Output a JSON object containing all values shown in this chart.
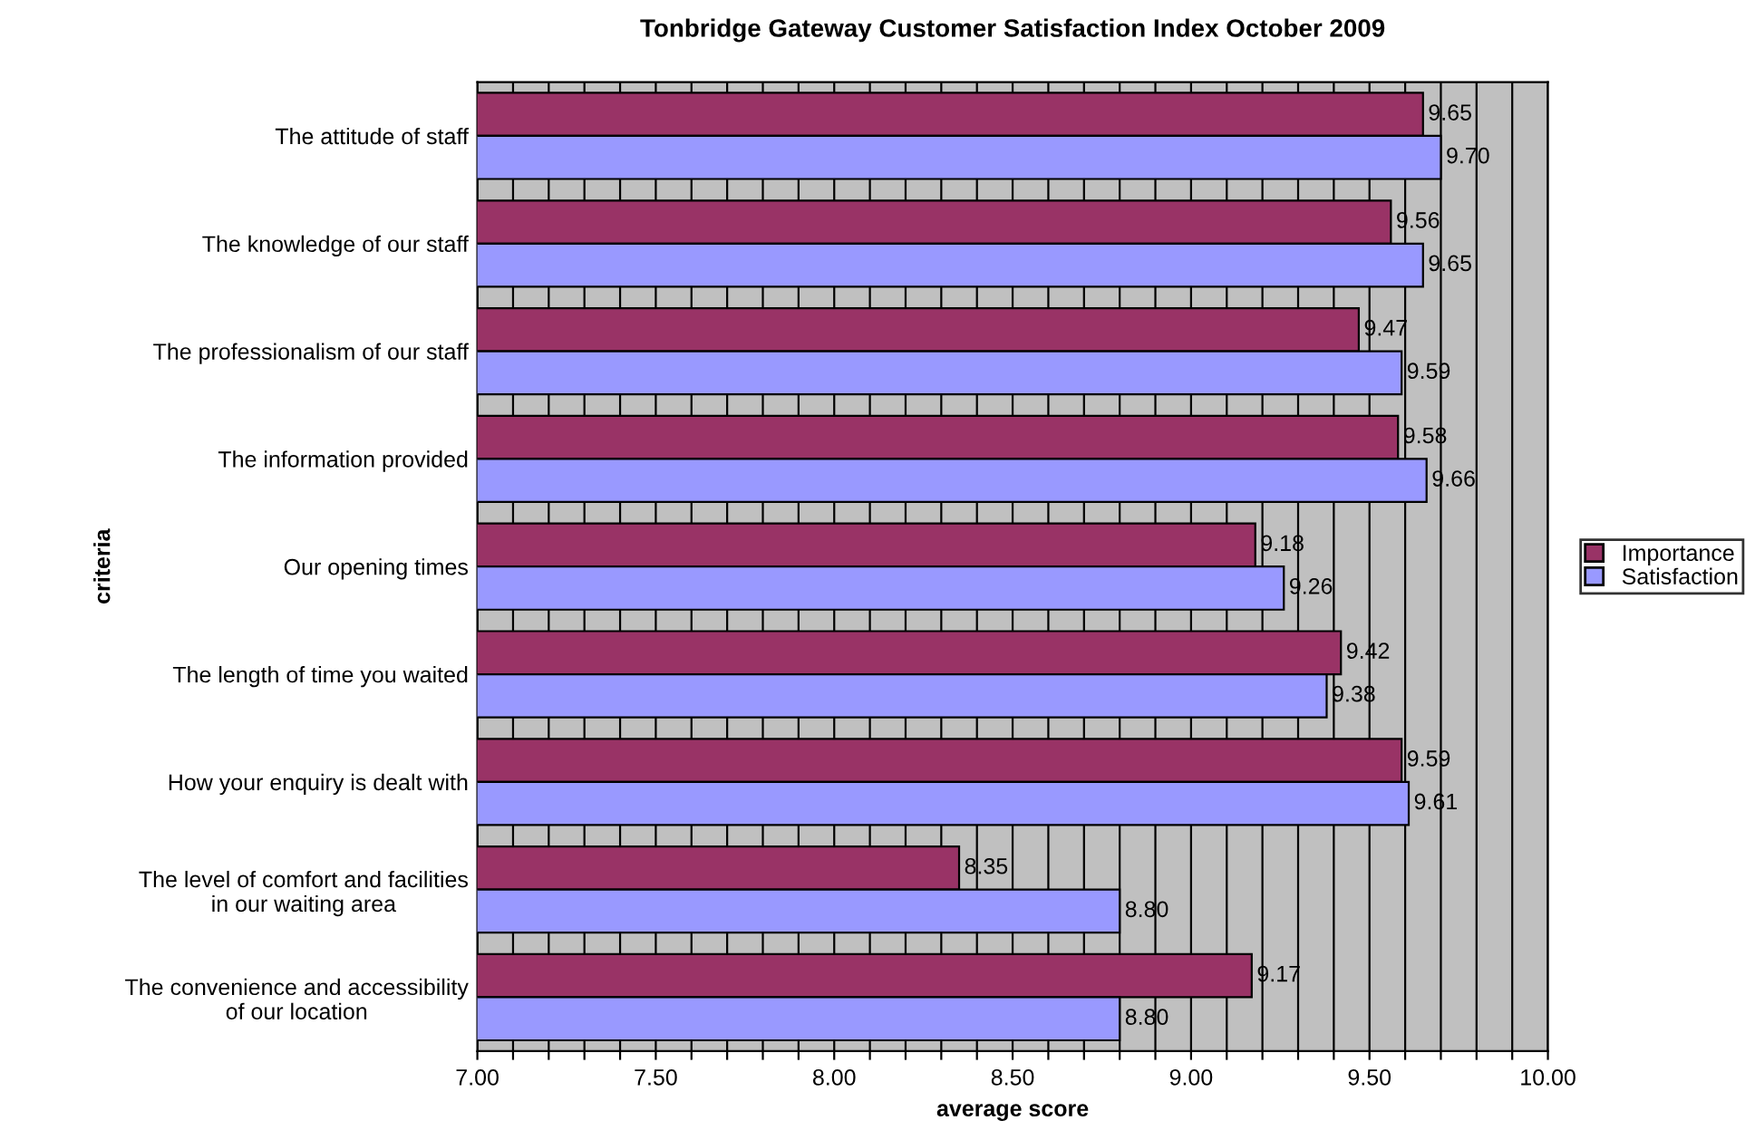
{
  "chart_data": {
    "type": "bar",
    "orientation": "horizontal",
    "title": "Tonbridge Gateway Customer Satisfaction Index October 2009",
    "xlabel": "average score",
    "ylabel": "criteria",
    "categories": [
      "The attitude of staff",
      "The knowledge of our staff",
      "The professionalism of our staff",
      "The information provided",
      "Our opening times",
      "The length of time you waited",
      "How your enquiry is dealt with",
      "The level of comfort and facilities\nin our waiting area",
      "The convenience and accessibility\nof our location"
    ],
    "series": [
      {
        "name": "Importance",
        "color": "#993366",
        "values": [
          9.65,
          9.56,
          9.47,
          9.58,
          9.18,
          9.42,
          9.59,
          8.35,
          9.17
        ],
        "value_labels": [
          "9.65",
          "9.56",
          "9.47",
          "9.58",
          "9.18",
          "9.42",
          "9.59",
          "8.35",
          "9.17"
        ]
      },
      {
        "name": "Satisfaction",
        "color": "#9999ff",
        "values": [
          9.7,
          9.65,
          9.59,
          9.66,
          9.26,
          9.38,
          9.61,
          8.8,
          8.8
        ],
        "value_labels": [
          "9.70",
          "9.65",
          "9.59",
          "9.66",
          "9.26",
          "9.38",
          "9.61",
          "8.80",
          "8.80"
        ]
      }
    ],
    "xlim": [
      7,
      10
    ],
    "xticks": [
      {
        "value": 7,
        "label": "7.00"
      },
      {
        "value": 7.1,
        "label": null
      },
      {
        "value": 7.2,
        "label": null
      },
      {
        "value": 7.3,
        "label": null
      },
      {
        "value": 7.4,
        "label": null
      },
      {
        "value": 7.5,
        "label": "7.50"
      },
      {
        "value": 7.6,
        "label": null
      },
      {
        "value": 7.7,
        "label": null
      },
      {
        "value": 7.8,
        "label": null
      },
      {
        "value": 7.9,
        "label": null
      },
      {
        "value": 8,
        "label": "8.00"
      },
      {
        "value": 8.1,
        "label": null
      },
      {
        "value": 8.2,
        "label": null
      },
      {
        "value": 8.3,
        "label": null
      },
      {
        "value": 8.4,
        "label": null
      },
      {
        "value": 8.5,
        "label": "8.50"
      },
      {
        "value": 8.6,
        "label": null
      },
      {
        "value": 8.7,
        "label": null
      },
      {
        "value": 8.8,
        "label": null
      },
      {
        "value": 8.9,
        "label": null
      },
      {
        "value": 9,
        "label": "9.00"
      },
      {
        "value": 9.1,
        "label": null
      },
      {
        "value": 9.2,
        "label": null
      },
      {
        "value": 9.3,
        "label": null
      },
      {
        "value": 9.4,
        "label": null
      },
      {
        "value": 9.5,
        "label": "9.50"
      },
      {
        "value": 9.6,
        "label": null
      },
      {
        "value": 9.7,
        "label": null
      },
      {
        "value": 9.8,
        "label": null
      },
      {
        "value": 9.9,
        "label": null
      },
      {
        "value": 10,
        "label": "10.00"
      }
    ],
    "grid": "x",
    "legend": "right"
  }
}
